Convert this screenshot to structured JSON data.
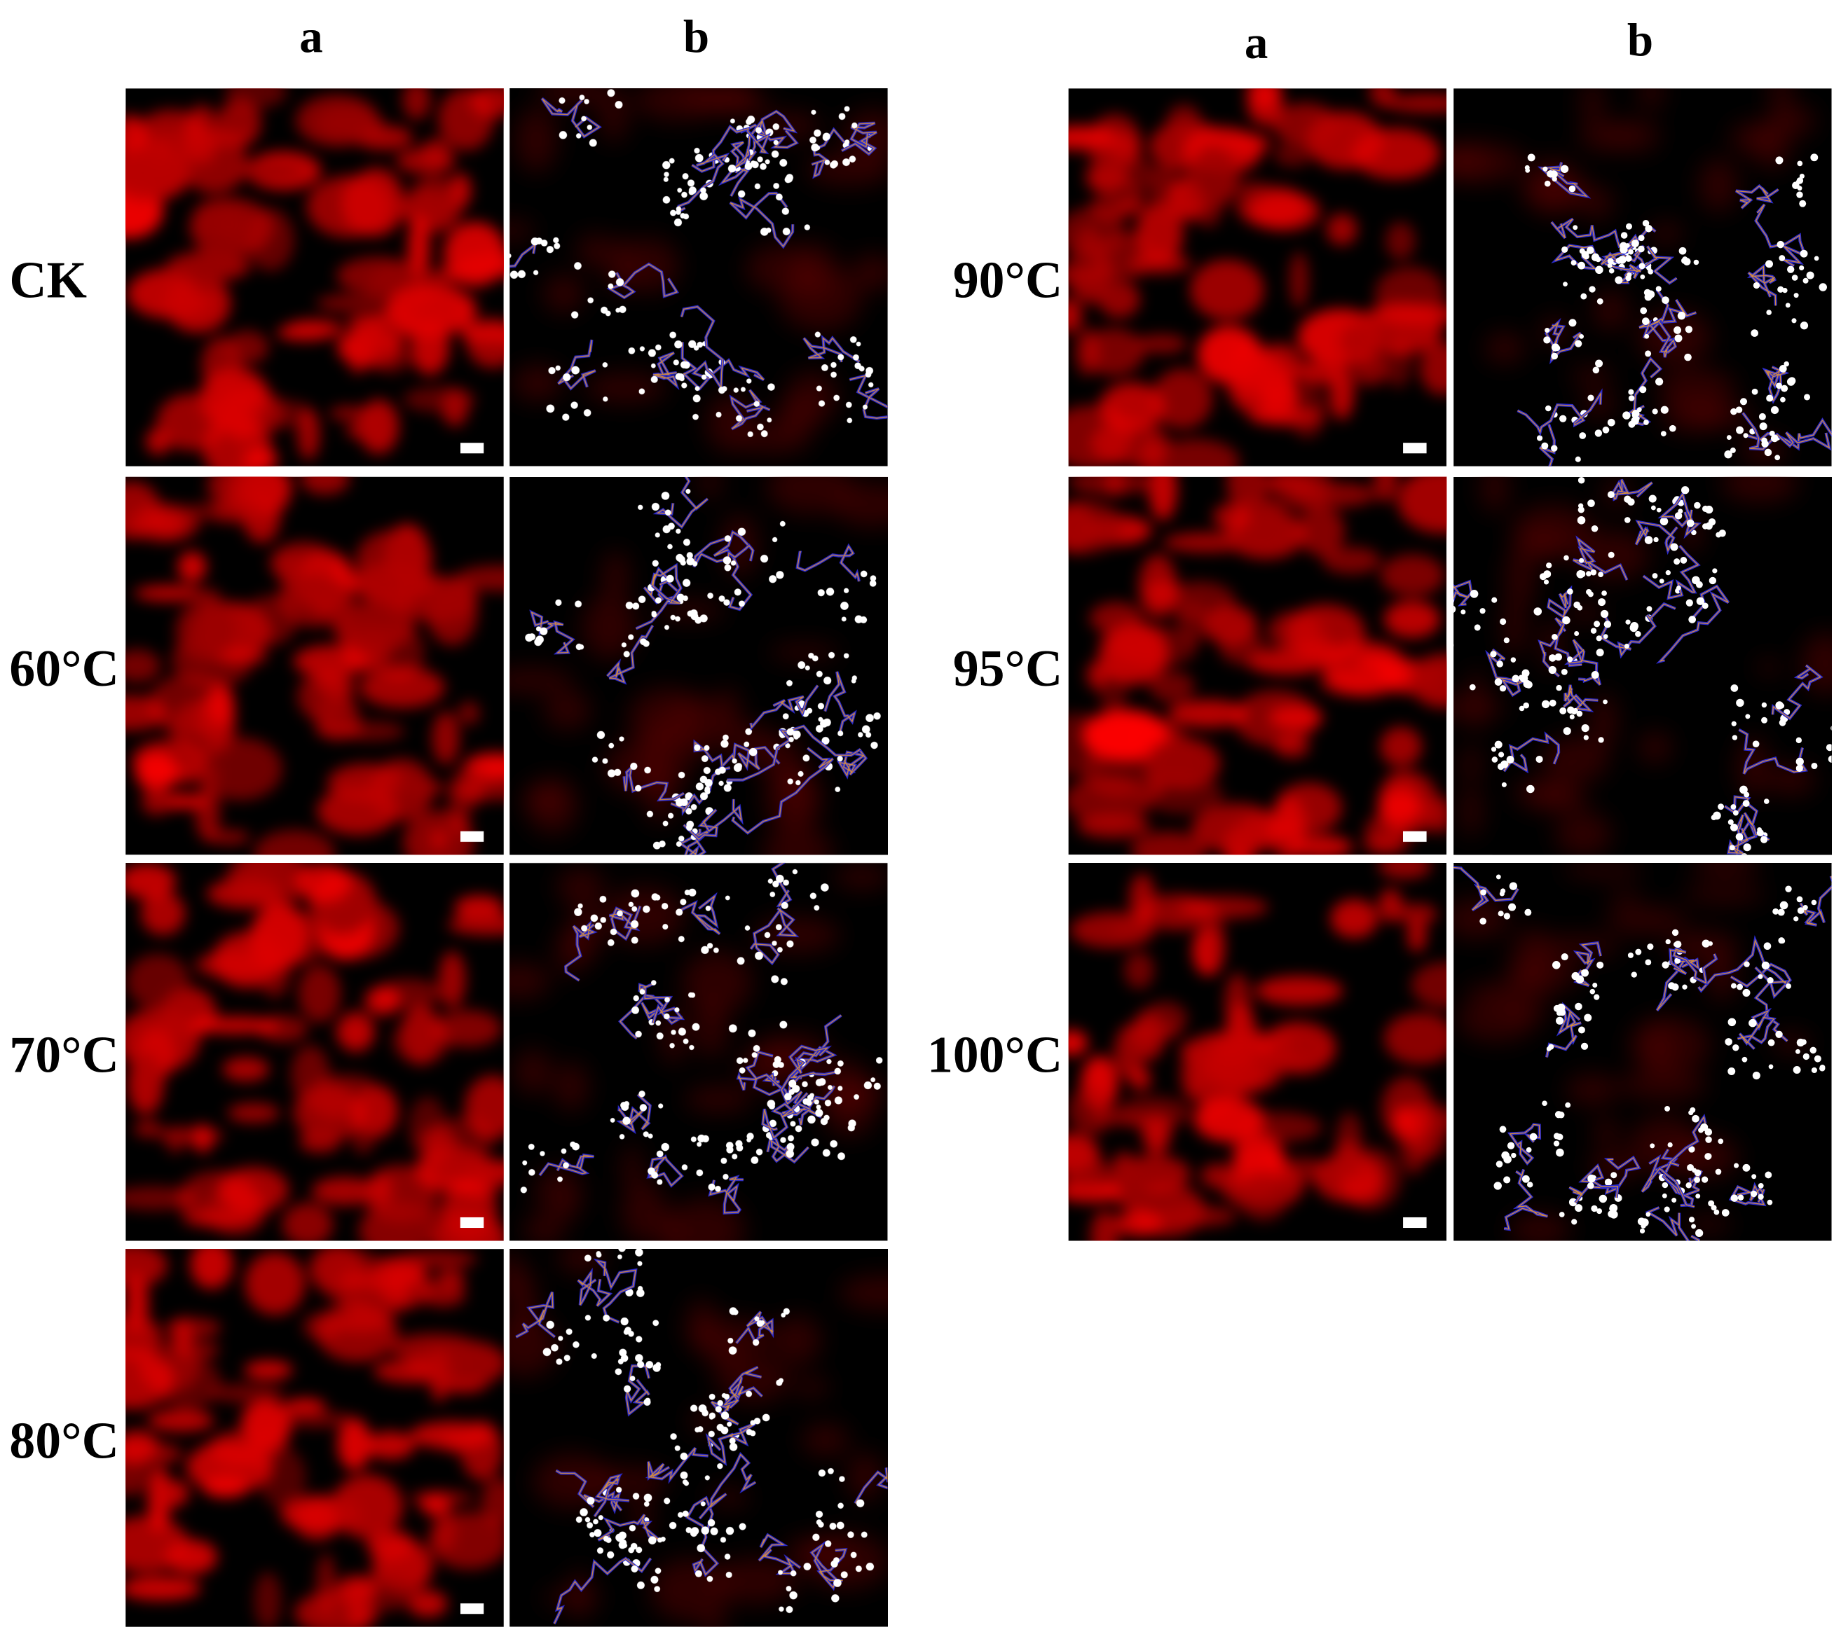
{
  "left": {
    "columns": [
      "a",
      "b"
    ],
    "rows": [
      "CK",
      "60°C",
      "70°C",
      "80°C"
    ]
  },
  "right": {
    "columns": [
      "a",
      "b"
    ],
    "rows": [
      "90°C",
      "95°C",
      "100°C"
    ]
  }
}
